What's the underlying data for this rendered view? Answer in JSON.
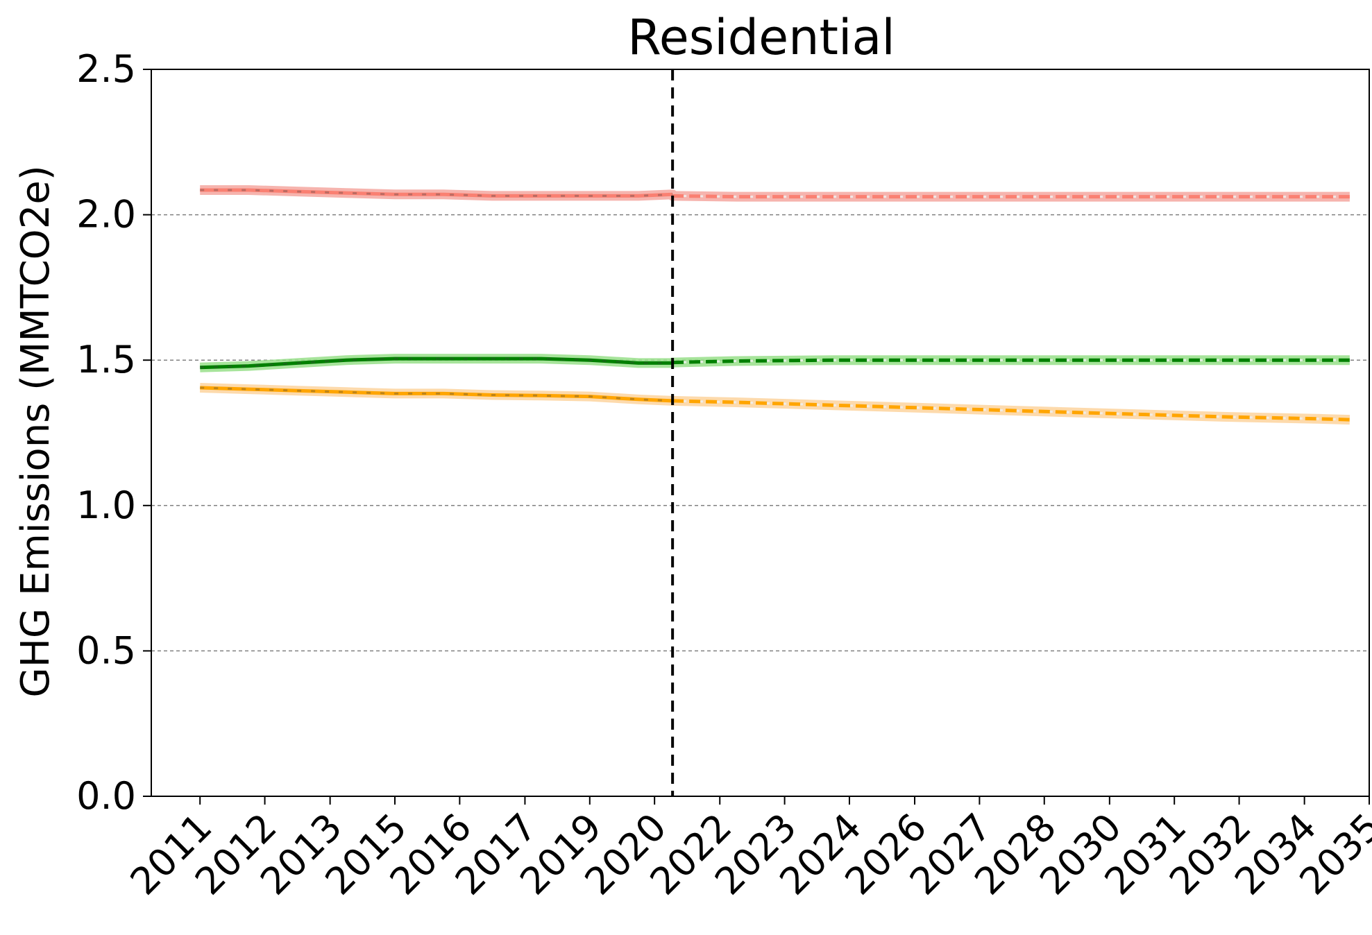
{
  "chart_data": {
    "type": "line",
    "title": "Residential",
    "xlabel": "",
    "ylabel": "GHG Emissions (MMTCO2e)",
    "ylim": [
      0,
      2.5
    ],
    "yticks": [
      "0.0",
      "0.5",
      "1.0",
      "1.5",
      "2.0",
      "2.5"
    ],
    "ytick_values": [
      0,
      0.5,
      1.0,
      1.5,
      2.0,
      2.5
    ],
    "xlim": [
      2010.0,
      2035.0
    ],
    "xtick_labels": [
      "2011",
      "2012",
      "2013",
      "2015",
      "2016",
      "2017",
      "2019",
      "2020",
      "2022",
      "2023",
      "2024",
      "2026",
      "2027",
      "2028",
      "2030",
      "2031",
      "2032",
      "2034",
      "2035"
    ],
    "xtick_values": [
      2011.0,
      2012.33,
      2013.67,
      2015.0,
      2016.33,
      2017.67,
      2019.0,
      2020.33,
      2021.67,
      2023.0,
      2024.33,
      2025.67,
      2027.0,
      2028.33,
      2029.67,
      2031.0,
      2032.33,
      2033.67,
      2035.0
    ],
    "divider_x": 2020.7,
    "grid": "y",
    "series": [
      {
        "color": "#fa8072",
        "band_color": "#f4a7a0",
        "historical": {
          "x": [
            2011.0,
            2012.0,
            2013.0,
            2014.0,
            2015.0,
            2016.0,
            2017.0,
            2018.0,
            2019.0,
            2020.0,
            2020.7
          ],
          "y": [
            2.085,
            2.085,
            2.08,
            2.075,
            2.07,
            2.07,
            2.065,
            2.065,
            2.065,
            2.065,
            2.07
          ]
        },
        "projection": {
          "x": [
            2020.7,
            2022.0,
            2024.0,
            2026.0,
            2028.0,
            2030.0,
            2032.0,
            2034.0,
            2034.6
          ],
          "y": [
            2.065,
            2.062,
            2.062,
            2.062,
            2.062,
            2.062,
            2.062,
            2.062,
            2.062
          ]
        }
      },
      {
        "color": "#008000",
        "band_color": "#98df8a",
        "historical": {
          "x": [
            2011.0,
            2012.0,
            2013.0,
            2014.0,
            2015.0,
            2016.0,
            2017.0,
            2018.0,
            2019.0,
            2020.0,
            2020.7
          ],
          "y": [
            1.475,
            1.48,
            1.49,
            1.5,
            1.505,
            1.505,
            1.505,
            1.505,
            1.5,
            1.49,
            1.49
          ]
        },
        "projection": {
          "x": [
            2020.7,
            2022.0,
            2024.0,
            2026.0,
            2028.0,
            2030.0,
            2032.0,
            2034.0,
            2034.6
          ],
          "y": [
            1.492,
            1.497,
            1.5,
            1.5,
            1.5,
            1.5,
            1.5,
            1.5,
            1.5
          ]
        }
      },
      {
        "color": "#ffa500",
        "band_color": "#fdd49e",
        "historical": {
          "x": [
            2011.0,
            2012.0,
            2013.0,
            2014.0,
            2015.0,
            2016.0,
            2017.0,
            2018.0,
            2019.0,
            2020.0,
            2020.7
          ],
          "y": [
            1.405,
            1.4,
            1.395,
            1.39,
            1.385,
            1.385,
            1.38,
            1.378,
            1.375,
            1.365,
            1.36
          ]
        },
        "projection": {
          "x": [
            2020.7,
            2022.0,
            2024.0,
            2026.0,
            2028.0,
            2030.0,
            2032.0,
            2034.0,
            2034.6
          ],
          "y": [
            1.36,
            1.355,
            1.345,
            1.335,
            1.325,
            1.315,
            1.305,
            1.298,
            1.295
          ]
        }
      }
    ]
  }
}
